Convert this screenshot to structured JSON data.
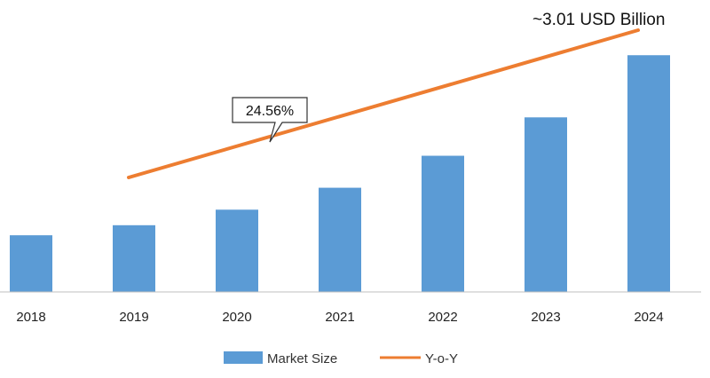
{
  "chart_data": {
    "type": "bar",
    "categories": [
      "2018",
      "2019",
      "2020",
      "2021",
      "2022",
      "2023",
      "2024"
    ],
    "series": [
      {
        "name": "Market Size",
        "values": [
          0.62,
          0.73,
          0.9,
          1.14,
          1.49,
          1.91,
          2.59
        ]
      }
    ],
    "trend": {
      "name": "Y-o-Y",
      "from": "2019",
      "to": "2024"
    },
    "annotations": {
      "cagr": "24.56%",
      "total": "~3.01 USD Billion"
    },
    "ylim": [
      0,
      3.0
    ],
    "grid": false,
    "legend_position": "bottom",
    "colors": {
      "bar": "#5b9bd5",
      "trend": "#ed7d31"
    }
  }
}
